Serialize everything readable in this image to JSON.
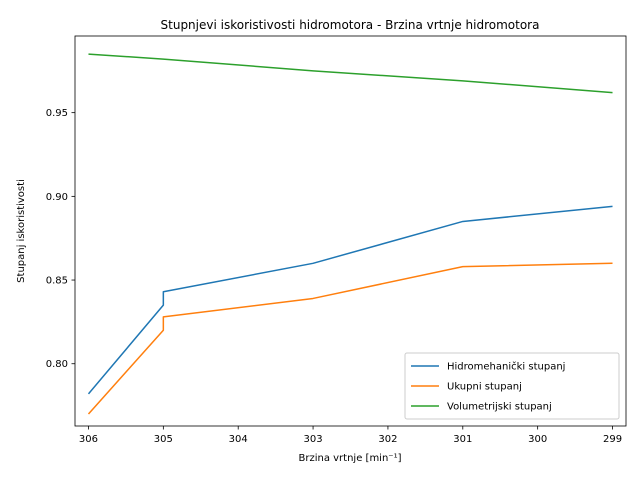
{
  "chart_data": {
    "type": "line",
    "title": "Stupnjevi iskoristivosti hidromotora - Brzina vrtnje hidromotora",
    "xlabel": "Brzina vrtnje [min⁻¹]",
    "ylabel": "Stupanj iskoristivosti",
    "x_inverted": true,
    "xlim": [
      306.18,
      298.82
    ],
    "ylim": [
      0.7628,
      0.9958
    ],
    "x_ticks": [
      306,
      305,
      304,
      303,
      302,
      301,
      300,
      299
    ],
    "y_ticks": [
      0.8,
      0.85,
      0.9,
      0.95
    ],
    "y_tick_labels": [
      "0.80",
      "0.85",
      "0.90",
      "0.95"
    ],
    "grid": false,
    "legend_position": "lower-right",
    "series": [
      {
        "name": "Hidromehanički stupanj",
        "color": "#1f77b4",
        "x": [
          306,
          305,
          305,
          303,
          301,
          299
        ],
        "y": [
          0.782,
          0.835,
          0.843,
          0.86,
          0.885,
          0.894
        ]
      },
      {
        "name": "Ukupni stupanj",
        "color": "#ff7f0e",
        "x": [
          306,
          305,
          305,
          303,
          301,
          299
        ],
        "y": [
          0.77,
          0.82,
          0.828,
          0.839,
          0.858,
          0.86
        ]
      },
      {
        "name": "Volumetrijski stupanj",
        "color": "#2ca02c",
        "x": [
          306,
          305,
          303,
          301,
          299
        ],
        "y": [
          0.985,
          0.982,
          0.975,
          0.969,
          0.962
        ]
      }
    ]
  }
}
